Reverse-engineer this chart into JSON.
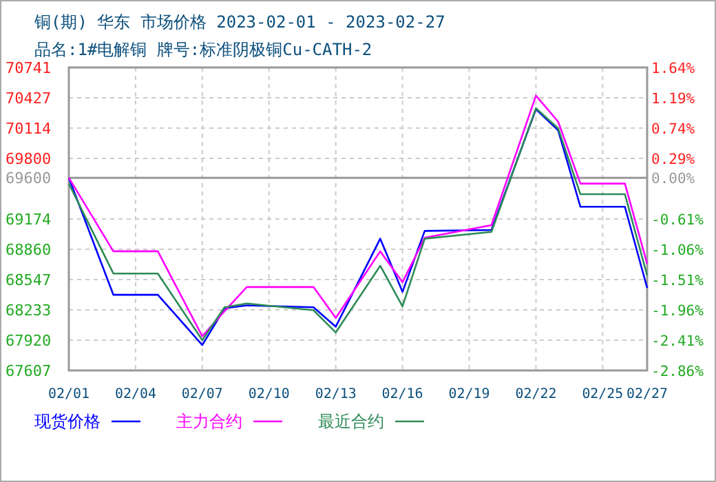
{
  "chart_data": {
    "type": "line",
    "title": "铜(期) 华东 市场价格 2023-02-01 - 2023-02-27",
    "subtitle": "品名:1#电解铜 牌号:标准阴极铜Cu-CATH-2",
    "x": [
      "2023-02-01",
      "2023-02-03",
      "2023-02-05",
      "2023-02-07",
      "2023-02-08",
      "2023-02-09",
      "2023-02-12",
      "2023-02-13",
      "2023-02-15",
      "2023-02-16",
      "2023-02-17",
      "2023-02-20",
      "2023-02-22",
      "2023-02-23",
      "2023-02-24",
      "2023-02-26",
      "2023-02-27"
    ],
    "series": [
      {
        "name": "现货价格",
        "color": "#0000ff",
        "values": [
          69600,
          68390,
          68390,
          67870,
          68250,
          68280,
          68260,
          68060,
          68970,
          68420,
          69050,
          69060,
          70310,
          70090,
          69300,
          69300,
          68460
        ]
      },
      {
        "name": "主力合约",
        "color": "#ff00ff",
        "values": [
          69600,
          68840,
          68840,
          67960,
          68220,
          68470,
          68470,
          68150,
          68840,
          68520,
          68980,
          69110,
          70450,
          70180,
          69540,
          69540,
          68710
        ]
      },
      {
        "name": "最近合约",
        "color": "#2e8b57",
        "values": [
          69540,
          68610,
          68610,
          67920,
          68260,
          68300,
          68230,
          68000,
          68690,
          68270,
          68970,
          69040,
          70320,
          70110,
          69430,
          69430,
          68590
        ]
      }
    ],
    "xlim": [
      "2023-02-01",
      "2023-02-27"
    ],
    "xticks": [
      {
        "value": "2023-02-01",
        "label": "02/01"
      },
      {
        "value": "2023-02-04",
        "label": "02/04"
      },
      {
        "value": "2023-02-07",
        "label": "02/07"
      },
      {
        "value": "2023-02-10",
        "label": "02/10"
      },
      {
        "value": "2023-02-13",
        "label": "02/13"
      },
      {
        "value": "2023-02-16",
        "label": "02/16"
      },
      {
        "value": "2023-02-19",
        "label": "02/19"
      },
      {
        "value": "2023-02-22",
        "label": "02/22"
      },
      {
        "value": "2023-02-25",
        "label": "02/25"
      },
      {
        "value": "2023-02-27",
        "label": "02/27"
      }
    ],
    "ylim": [
      67607,
      70741
    ],
    "yticks": [
      67607,
      67920,
      68233,
      68547,
      68860,
      69174,
      69600,
      69800,
      70114,
      70427,
      70741
    ],
    "y2lim": [
      -2.86,
      1.64
    ],
    "y2ticks": [
      {
        "value": -2.86,
        "label": "-2.86%"
      },
      {
        "value": -2.41,
        "label": "-2.41%"
      },
      {
        "value": -1.96,
        "label": "-1.96%"
      },
      {
        "value": -1.51,
        "label": "-1.51%"
      },
      {
        "value": -1.06,
        "label": "-1.06%"
      },
      {
        "value": -0.61,
        "label": "-0.61%"
      },
      {
        "value": 0,
        "label": "0.00%"
      },
      {
        "value": 0.29,
        "label": "0.29%"
      },
      {
        "value": 0.74,
        "label": "0.74%"
      },
      {
        "value": 1.19,
        "label": "1.19%"
      },
      {
        "value": 1.64,
        "label": "1.64%"
      }
    ],
    "ref_lines": [
      {
        "axis": "y2",
        "value": 0,
        "color": "#999999"
      }
    ],
    "grid": true,
    "legend": "bottom",
    "line_style": "solid"
  }
}
